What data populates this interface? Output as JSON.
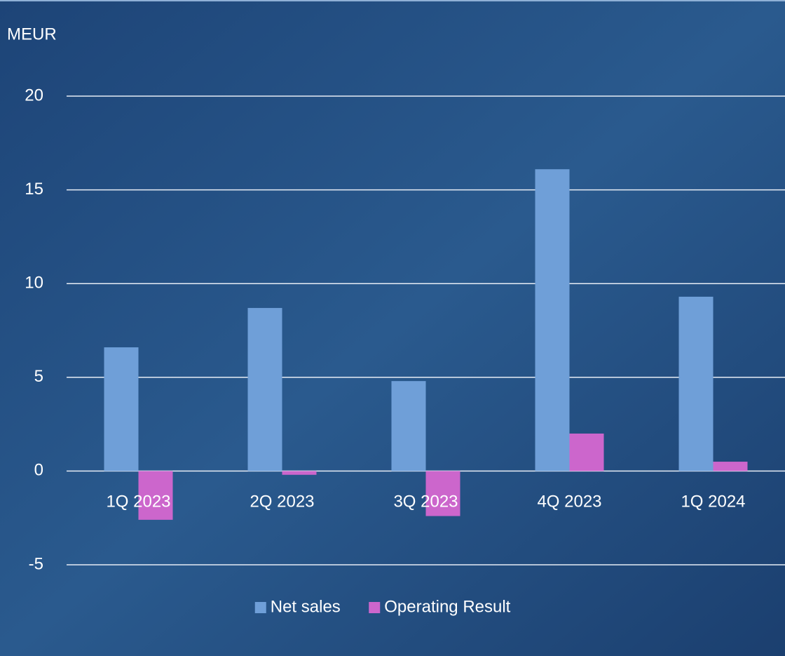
{
  "chart_data": {
    "type": "bar",
    "y_axis_label": "MEUR",
    "categories": [
      "1Q 2023",
      "2Q 2023",
      "3Q 2023",
      "4Q 2023",
      "1Q 2024"
    ],
    "series": [
      {
        "name": "Net sales",
        "color": "#6f9fd8",
        "values": [
          6.6,
          8.7,
          4.8,
          16.1,
          9.3
        ]
      },
      {
        "name": "Operating Result",
        "color": "#cc66cc",
        "values": [
          -2.6,
          -0.2,
          -2.4,
          2.0,
          0.5
        ]
      }
    ],
    "ylim": [
      -5,
      20
    ],
    "yticks": [
      -5,
      0,
      5,
      10,
      15,
      20
    ],
    "grid": true,
    "legend": "bottom"
  }
}
